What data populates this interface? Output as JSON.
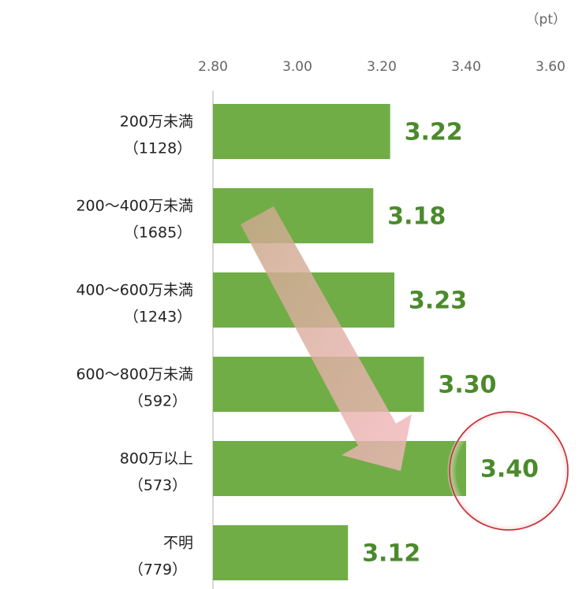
{
  "chart_data": {
    "type": "bar",
    "orientation": "horizontal",
    "unit": "（pt）",
    "categories": [
      "200万未満",
      "200～400万未満",
      "400～600万未満",
      "600～800万未満",
      "800万以上",
      "不明"
    ],
    "sample_sizes": [
      "（1128）",
      "（1685）",
      "（1243）",
      "（592）",
      "（573）",
      "（779）"
    ],
    "values": [
      3.22,
      3.18,
      3.23,
      3.3,
      3.4,
      3.12
    ],
    "value_labels": [
      "3.22",
      "3.18",
      "3.23",
      "3.30",
      "3.40",
      "3.12"
    ],
    "color": "#70ad47",
    "xlim": [
      2.8,
      3.6
    ],
    "xticks": [
      {
        "value": 2.8,
        "label": "2.80"
      },
      {
        "value": 3.0,
        "label": "3.00"
      },
      {
        "value": 3.2,
        "label": "3.20"
      },
      {
        "value": 3.4,
        "label": "3.40"
      },
      {
        "value": 3.6,
        "label": "3.60"
      }
    ]
  }
}
